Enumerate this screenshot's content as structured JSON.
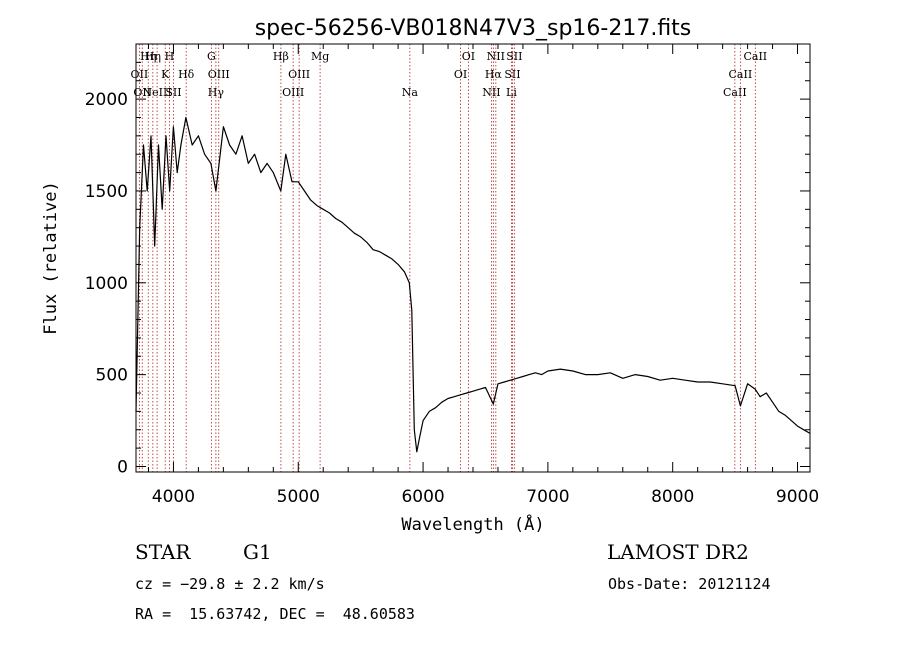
{
  "chart_data": {
    "type": "line",
    "title": "spec-56256-VB018N47V3_sp16-217.fits",
    "xlabel": "Wavelength (Å)",
    "ylabel": "Flux (relative)",
    "xlim": [
      3700,
      9100
    ],
    "ylim": [
      -30,
      2300
    ],
    "xticks": [
      4000,
      5000,
      6000,
      7000,
      8000,
      9000
    ],
    "yticks": [
      0,
      500,
      1000,
      1500,
      2000
    ],
    "grid": false,
    "series": [
      {
        "x": [
          3700,
          3730,
          3760,
          3790,
          3820,
          3850,
          3880,
          3910,
          3940,
          3970,
          4000,
          4030,
          4060,
          4100,
          4150,
          4200,
          4250,
          4300,
          4340,
          4400,
          4450,
          4500,
          4550,
          4600,
          4650,
          4700,
          4750,
          4800,
          4860,
          4900,
          4950,
          5000,
          5050,
          5100,
          5150,
          5200,
          5250,
          5300,
          5350,
          5400,
          5450,
          5500,
          5550,
          5600,
          5650,
          5700,
          5750,
          5800,
          5850,
          5890,
          5910,
          5930,
          5950,
          5970,
          6000,
          6050,
          6100,
          6150,
          6200,
          6250,
          6300,
          6350,
          6400,
          6450,
          6500,
          6563,
          6600,
          6650,
          6700,
          6750,
          6800,
          6850,
          6900,
          6950,
          7000,
          7100,
          7200,
          7300,
          7400,
          7500,
          7600,
          7700,
          7800,
          7900,
          8000,
          8100,
          8200,
          8300,
          8400,
          8500,
          8542,
          8600,
          8662,
          8700,
          8750,
          8800,
          8850,
          8900,
          8950,
          9000,
          9050,
          9100
        ],
        "y": [
          300,
          1300,
          1750,
          1500,
          1800,
          1200,
          1750,
          1400,
          1800,
          1500,
          1850,
          1600,
          1750,
          1900,
          1750,
          1800,
          1700,
          1650,
          1500,
          1850,
          1750,
          1700,
          1800,
          1650,
          1700,
          1600,
          1650,
          1600,
          1500,
          1700,
          1550,
          1550,
          1500,
          1450,
          1420,
          1400,
          1380,
          1350,
          1330,
          1300,
          1270,
          1250,
          1220,
          1180,
          1170,
          1150,
          1130,
          1100,
          1060,
          1000,
          850,
          200,
          80,
          150,
          250,
          300,
          320,
          350,
          370,
          380,
          390,
          400,
          410,
          420,
          430,
          340,
          450,
          460,
          470,
          480,
          490,
          500,
          510,
          500,
          520,
          530,
          520,
          500,
          500,
          510,
          480,
          500,
          490,
          470,
          480,
          470,
          460,
          460,
          450,
          440,
          330,
          450,
          420,
          380,
          400,
          350,
          300,
          280,
          250,
          220,
          200,
          180
        ]
      }
    ],
    "lines": [
      {
        "x": 3727,
        "labels": [
          "OII"
        ],
        "rows": [
          1
        ]
      },
      {
        "x": 3750,
        "labels": [
          "OII"
        ],
        "rows": [
          2
        ]
      },
      {
        "x": 3798,
        "labels": [
          "Hη"
        ],
        "rows": [
          0
        ]
      },
      {
        "x": 3835,
        "labels": [
          "Hη"
        ],
        "rows": [
          0
        ]
      },
      {
        "x": 3869,
        "labels": [
          "NeIII"
        ],
        "rows": [
          2
        ]
      },
      {
        "x": 3934,
        "labels": [
          "K"
        ],
        "rows": [
          1
        ]
      },
      {
        "x": 3968,
        "labels": [
          "H"
        ],
        "rows": [
          0
        ]
      },
      {
        "x": 4000,
        "labels": [
          "SII"
        ],
        "rows": [
          2
        ]
      },
      {
        "x": 4102,
        "labels": [
          "Hδ"
        ],
        "rows": [
          1
        ]
      },
      {
        "x": 4304,
        "labels": [
          "G"
        ],
        "rows": [
          0
        ]
      },
      {
        "x": 4340,
        "labels": [
          "Hγ"
        ],
        "rows": [
          2
        ]
      },
      {
        "x": 4363,
        "labels": [
          "OIII"
        ],
        "rows": [
          1
        ]
      },
      {
        "x": 4861,
        "labels": [
          "Hβ"
        ],
        "rows": [
          0
        ]
      },
      {
        "x": 4959,
        "labels": [
          "OIII"
        ],
        "rows": [
          2
        ]
      },
      {
        "x": 5007,
        "labels": [
          "OIII"
        ],
        "rows": [
          1
        ]
      },
      {
        "x": 5175,
        "labels": [
          "Mg"
        ],
        "rows": [
          0
        ]
      },
      {
        "x": 5894,
        "labels": [
          "Na"
        ],
        "rows": [
          2
        ]
      },
      {
        "x": 6300,
        "labels": [
          "OI"
        ],
        "rows": [
          1
        ]
      },
      {
        "x": 6363,
        "labels": [
          "OI"
        ],
        "rows": [
          0
        ]
      },
      {
        "x": 6548,
        "labels": [
          "NII"
        ],
        "rows": [
          2
        ]
      },
      {
        "x": 6563,
        "labels": [
          "Hα"
        ],
        "rows": [
          1
        ]
      },
      {
        "x": 6583,
        "labels": [
          "NII"
        ],
        "rows": [
          0
        ]
      },
      {
        "x": 6708,
        "labels": [
          "Li"
        ],
        "rows": [
          2
        ]
      },
      {
        "x": 6716,
        "labels": [
          "SII"
        ],
        "rows": [
          1
        ]
      },
      {
        "x": 6731,
        "labels": [
          "SII"
        ],
        "rows": [
          0
        ]
      },
      {
        "x": 8498,
        "labels": [
          "CaII"
        ],
        "rows": [
          2
        ]
      },
      {
        "x": 8542,
        "labels": [
          "CaII"
        ],
        "rows": [
          1
        ]
      },
      {
        "x": 8662,
        "labels": [
          "CaII"
        ],
        "rows": [
          0
        ]
      }
    ]
  },
  "footer": {
    "class_label": "STAR",
    "subclass": "G1",
    "survey": "LAMOST DR2",
    "cz": "cz = −29.8 ± 2.2 km/s",
    "obs_date": "Obs-Date: 20121124",
    "coords": "RA =  15.63742, DEC =  48.60583"
  }
}
